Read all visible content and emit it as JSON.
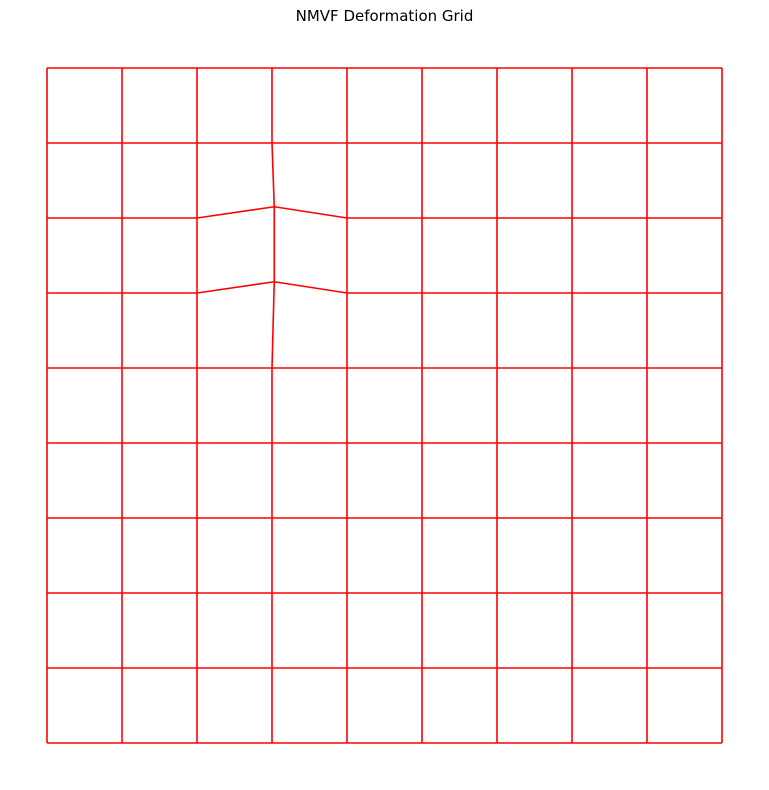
{
  "chart_data": {
    "type": "line",
    "title": "NMVF Deformation Grid",
    "xlabel": "",
    "ylabel": "",
    "axes_visible": false,
    "grid_size": [
      10,
      10
    ],
    "xlim": [
      0,
      9
    ],
    "ylim": [
      0,
      9
    ],
    "line_color": "#ff0000",
    "displaced_nodes": [
      {
        "i": 3,
        "j": 2,
        "x": 3.03,
        "y": 1.85
      },
      {
        "i": 3,
        "j": 3,
        "x": 3.03,
        "y": 2.85
      }
    ]
  }
}
